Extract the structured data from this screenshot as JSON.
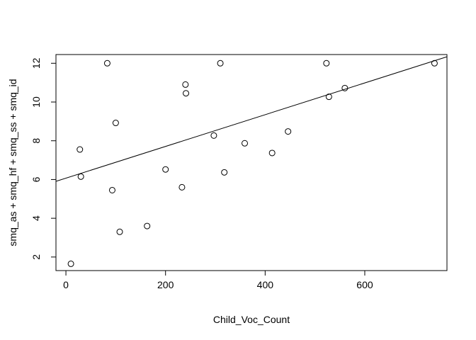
{
  "chart_data": {
    "type": "scatter",
    "xlabel": "Child_Voc_Count",
    "ylabel": "smq_as + smq_hf + smq_ss + smq_id",
    "xlim": [
      -20,
      765
    ],
    "ylim": [
      1.3,
      12.45
    ],
    "x_ticks": [
      0,
      200,
      400,
      600
    ],
    "y_ticks": [
      2,
      4,
      6,
      8,
      10,
      12
    ],
    "grid": false,
    "points": [
      {
        "x": 10,
        "y": 1.65
      },
      {
        "x": 28,
        "y": 7.55
      },
      {
        "x": 30,
        "y": 6.15
      },
      {
        "x": 83,
        "y": 12.0
      },
      {
        "x": 93,
        "y": 5.45
      },
      {
        "x": 100,
        "y": 8.92
      },
      {
        "x": 108,
        "y": 3.3
      },
      {
        "x": 163,
        "y": 3.6
      },
      {
        "x": 200,
        "y": 6.52
      },
      {
        "x": 233,
        "y": 5.6
      },
      {
        "x": 240,
        "y": 10.9
      },
      {
        "x": 241,
        "y": 10.45
      },
      {
        "x": 297,
        "y": 8.27
      },
      {
        "x": 310,
        "y": 12.0
      },
      {
        "x": 318,
        "y": 6.37
      },
      {
        "x": 359,
        "y": 7.87
      },
      {
        "x": 414,
        "y": 7.37
      },
      {
        "x": 446,
        "y": 8.48
      },
      {
        "x": 523,
        "y": 12.0
      },
      {
        "x": 528,
        "y": 10.27
      },
      {
        "x": 560,
        "y": 10.72
      },
      {
        "x": 740,
        "y": 12.0
      }
    ],
    "fit_line": {
      "intercept": 6.07,
      "slope": 0.00819
    }
  }
}
